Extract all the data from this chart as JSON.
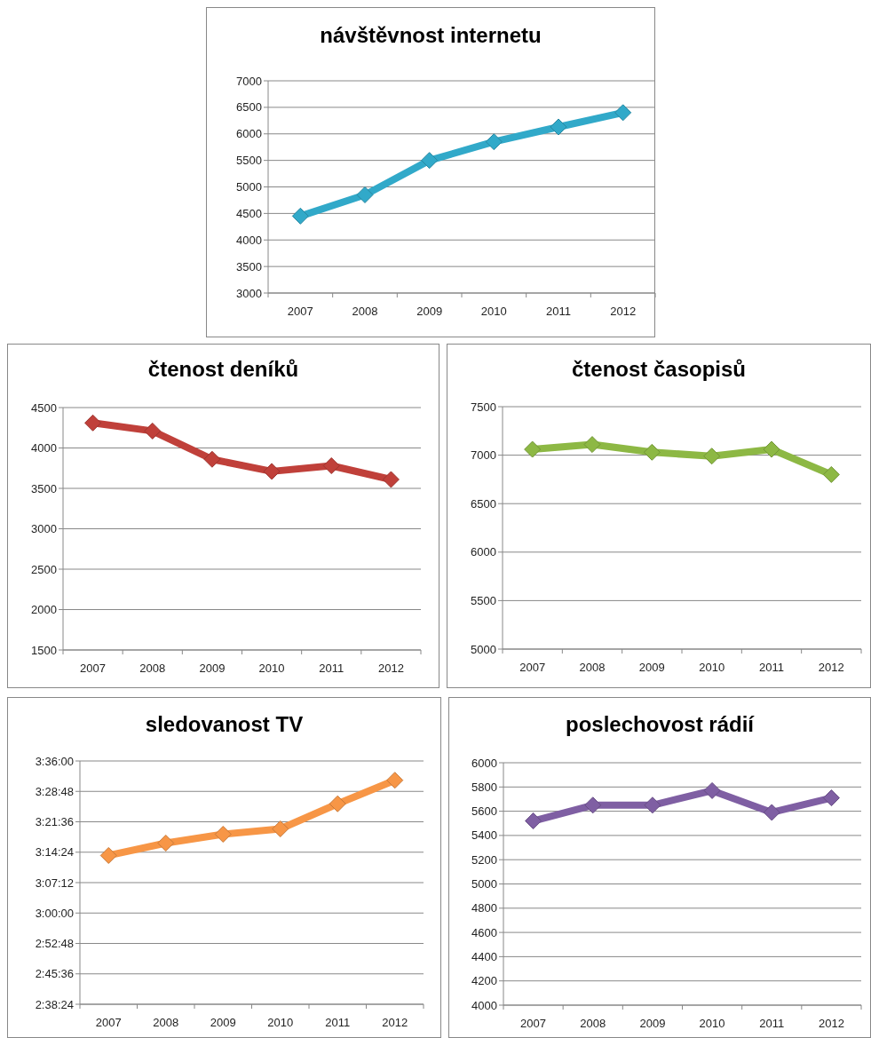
{
  "chart_data": [
    {
      "type": "line",
      "title": "návštěvnost internetu",
      "categories": [
        "2007",
        "2008",
        "2009",
        "2010",
        "2011",
        "2012"
      ],
      "series": [
        {
          "color": "#31a9c9",
          "values": [
            4450,
            4850,
            5500,
            5850,
            6130,
            6400
          ]
        }
      ],
      "ylim": [
        3000,
        7000
      ],
      "yticks": [
        3000,
        3500,
        4000,
        4500,
        5000,
        5500,
        6000,
        6500,
        7000
      ],
      "grid": "y",
      "marker": "diamond",
      "line_style": "solid"
    },
    {
      "type": "line",
      "title": "čtenost deníků",
      "categories": [
        "2007",
        "2008",
        "2009",
        "2010",
        "2011",
        "2012"
      ],
      "series": [
        {
          "color": "#c0403a",
          "values": [
            4310,
            4210,
            3860,
            3710,
            3780,
            3610
          ]
        }
      ],
      "ylim": [
        1500,
        4500
      ],
      "yticks": [
        1500,
        2000,
        2500,
        3000,
        3500,
        4000,
        4500
      ],
      "grid": "y",
      "marker": "diamond",
      "line_style": "solid"
    },
    {
      "type": "line",
      "title": "čtenost časopisů",
      "categories": [
        "2007",
        "2008",
        "2009",
        "2010",
        "2011",
        "2012"
      ],
      "series": [
        {
          "color": "#8db844",
          "values": [
            7060,
            7110,
            7030,
            6990,
            7060,
            6800
          ]
        }
      ],
      "ylim": [
        5000,
        7500
      ],
      "yticks": [
        5000,
        5500,
        6000,
        6500,
        7000,
        7500
      ],
      "grid": "y",
      "marker": "diamond",
      "line_style": "solid"
    },
    {
      "type": "line",
      "title": "sledovanost TV",
      "categories": [
        "2007",
        "2008",
        "2009",
        "2010",
        "2011",
        "2012"
      ],
      "series": [
        {
          "color": "#f79646",
          "values": [
            3.227,
            3.276,
            3.311,
            3.332,
            3.431,
            3.524
          ]
        }
      ],
      "ylim": [
        2.64,
        3.6
      ],
      "yticks": [
        {
          "value": 2.64,
          "label": "2:38:24"
        },
        {
          "value": 2.76,
          "label": "2:45:36"
        },
        {
          "value": 2.88,
          "label": "2:52:48"
        },
        {
          "value": 3.0,
          "label": "3:00:00"
        },
        {
          "value": 3.12,
          "label": "3:07:12"
        },
        {
          "value": 3.24,
          "label": "3:14:24"
        },
        {
          "value": 3.36,
          "label": "3:21:36"
        },
        {
          "value": 3.48,
          "label": "3:28:48"
        },
        {
          "value": 3.6,
          "label": "3:36:00"
        }
      ],
      "grid": "y",
      "marker": "diamond",
      "line_style": "solid"
    },
    {
      "type": "line",
      "title": "poslechovost rádií",
      "categories": [
        "2007",
        "2008",
        "2009",
        "2010",
        "2011",
        "2012"
      ],
      "series": [
        {
          "color": "#7f5fa3",
          "values": [
            5520,
            5650,
            5650,
            5770,
            5590,
            5710
          ]
        }
      ],
      "ylim": [
        4000,
        6000
      ],
      "yticks": [
        4000,
        4200,
        4400,
        4600,
        4800,
        5000,
        5200,
        5400,
        5600,
        5800,
        6000
      ],
      "grid": "y",
      "marker": "diamond",
      "line_style": "solid"
    }
  ]
}
